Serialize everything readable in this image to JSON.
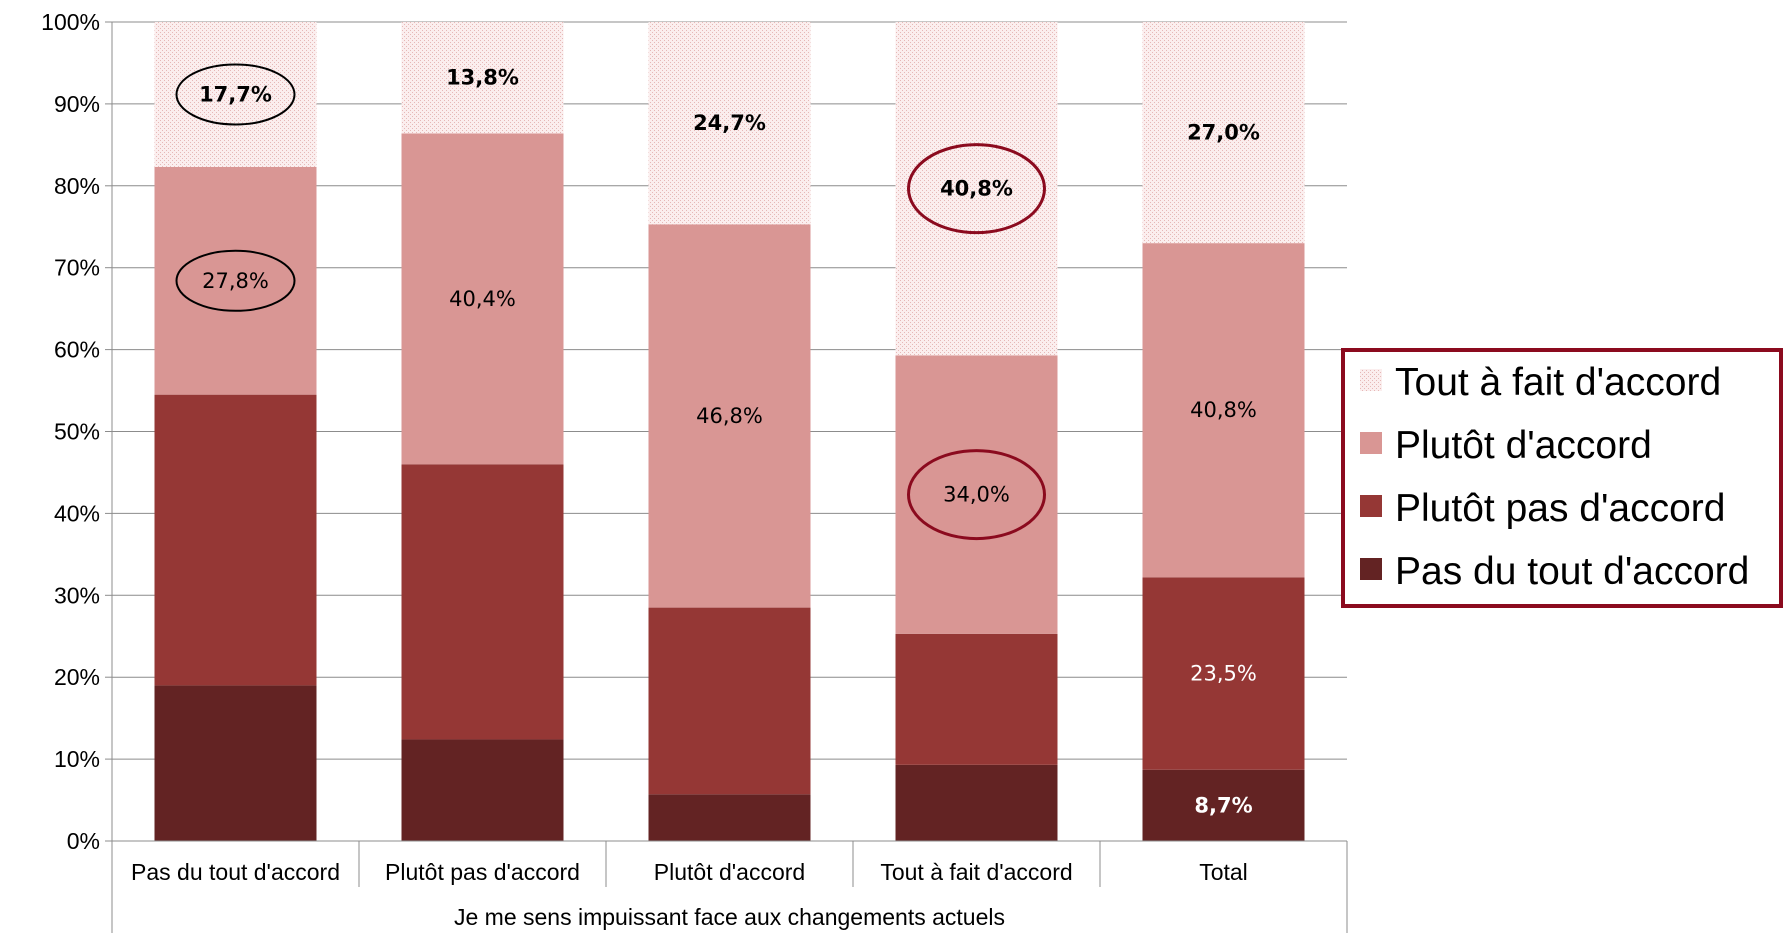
{
  "chart_data": {
    "type": "bar",
    "stacked": true,
    "percent": true,
    "title": "",
    "xlabel": "Je me sens impuissant face aux changements actuels",
    "ylabel": "",
    "ylim": [
      0,
      100
    ],
    "y_ticks": [
      "0%",
      "10%",
      "20%",
      "30%",
      "40%",
      "50%",
      "60%",
      "70%",
      "80%",
      "90%",
      "100%"
    ],
    "grid": true,
    "legend_position": "right",
    "categories": [
      "Pas du tout d'accord",
      "Plutôt pas d'accord",
      "Plutôt d'accord",
      "Tout à fait d'accord",
      "Total"
    ],
    "series": [
      {
        "name": "Pas du tout d'accord",
        "color": "#632323",
        "values": [
          19.0,
          12.4,
          5.7,
          9.3,
          8.7
        ]
      },
      {
        "name": "Plutôt pas d'accord",
        "color": "#953735",
        "values": [
          35.5,
          33.6,
          22.8,
          16.0,
          23.5
        ]
      },
      {
        "name": "Plutôt d'accord",
        "color": "#d99694",
        "values": [
          27.8,
          40.4,
          46.8,
          34.0,
          40.8
        ]
      },
      {
        "name": "Tout à fait d'accord",
        "color": "#f7e4e4",
        "values": [
          17.7,
          13.8,
          24.7,
          40.8,
          27.0
        ]
      }
    ],
    "data_labels": [
      {
        "series": 3,
        "category": 0,
        "text": "17,7%",
        "bold": true,
        "circled": true
      },
      {
        "series": 2,
        "category": 0,
        "text": "27,8%",
        "bold": false,
        "circled": true
      },
      {
        "series": 3,
        "category": 1,
        "text": "13,8%",
        "bold": true,
        "circled": false
      },
      {
        "series": 2,
        "category": 1,
        "text": "40,4%",
        "bold": false,
        "circled": false
      },
      {
        "series": 3,
        "category": 2,
        "text": "24,7%",
        "bold": true,
        "circled": false
      },
      {
        "series": 2,
        "category": 2,
        "text": "46,8%",
        "bold": false,
        "circled": false
      },
      {
        "series": 3,
        "category": 3,
        "text": "40,8%",
        "bold": true,
        "circled": true
      },
      {
        "series": 2,
        "category": 3,
        "text": "34,0%",
        "bold": false,
        "circled": true
      },
      {
        "series": 3,
        "category": 4,
        "text": "27,0%",
        "bold": true,
        "circled": false
      },
      {
        "series": 2,
        "category": 4,
        "text": "40,8%",
        "bold": false,
        "circled": false
      },
      {
        "series": 1,
        "category": 4,
        "text": "23,5%",
        "bold": false,
        "circled": false,
        "color": "#ffffff"
      },
      {
        "series": 0,
        "category": 4,
        "text": "8,7%",
        "bold": true,
        "circled": false,
        "color": "#ffffff"
      }
    ],
    "circle_colors": {
      "black": "#000000",
      "red": "#8b0a1e"
    },
    "legend_border_color": "#8b0a1e"
  }
}
